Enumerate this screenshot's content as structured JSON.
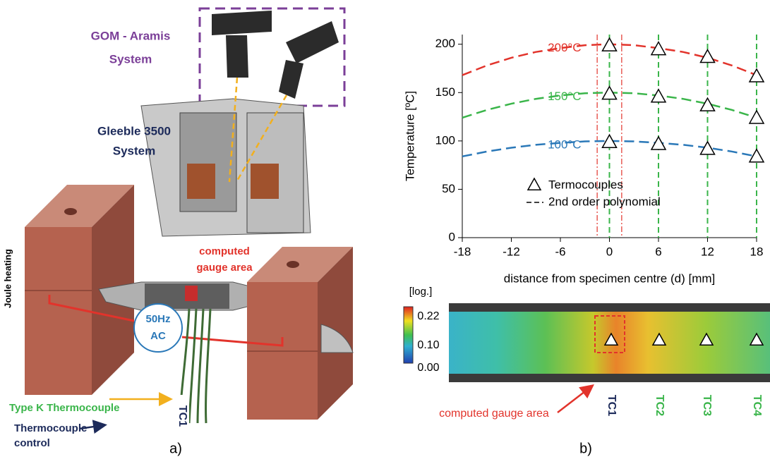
{
  "panel_a": {
    "gom": [
      "GOM - Aramis",
      "System"
    ],
    "gleeble": [
      "Gleeble 3500",
      "System"
    ],
    "gauge": [
      "computed",
      "gauge area"
    ],
    "joule": "Joule heating",
    "source": [
      "50Hz",
      "AC"
    ],
    "type_k": "Type K Thermocouple",
    "control": [
      "Thermocouple",
      "control"
    ],
    "tc1": "TC1",
    "caption": "a)"
  },
  "chart_data": {
    "type": "line",
    "x": [
      -18,
      -15,
      -12,
      -9,
      -6,
      -3,
      0,
      3,
      6,
      9,
      12,
      15,
      18
    ],
    "series": [
      {
        "name": "200°C",
        "color": "#e2332b",
        "values": [
          168,
          178,
          186,
          192,
          196,
          199,
          200,
          199,
          196,
          192,
          186,
          178,
          168
        ]
      },
      {
        "name": "150°C",
        "color": "#3ab54a",
        "values": [
          124,
          132,
          138.5,
          143.5,
          147,
          149.3,
          150,
          149.3,
          147,
          143.5,
          138.5,
          132,
          124
        ]
      },
      {
        "name": "100°C",
        "color": "#2a78b8",
        "values": [
          84,
          89,
          93,
          96,
          98,
          99.5,
          100,
          99.5,
          98,
          96,
          93,
          89,
          84
        ]
      }
    ],
    "points": {
      "name": "Termocouples",
      "x": [
        0,
        6,
        12,
        18,
        0,
        6,
        12,
        18,
        0,
        6,
        12,
        18
      ],
      "values": [
        199,
        195,
        187,
        167,
        149,
        146,
        137,
        124,
        99,
        97,
        92,
        84
      ]
    },
    "polynomial_label": "2nd order polynomial",
    "green_lines": [
      0,
      6,
      12,
      18
    ],
    "red_lines": [
      -1.5,
      1.5
    ],
    "xlabel": "distance from specimen centre (d) [mm]",
    "ylabel": "Temperature [ºC]",
    "xlim": [
      -18,
      18
    ],
    "xticks": [
      -18,
      -12,
      -6,
      0,
      6,
      12,
      18
    ],
    "ylim": [
      0,
      210
    ],
    "yticks": [
      0,
      50,
      100,
      150,
      200
    ]
  },
  "strain_map": {
    "unit": "[log.]",
    "colorbar_labels": [
      "0.22",
      "0.10",
      "0.00"
    ],
    "tcs": [
      "TC1",
      "TC2",
      "TC3",
      "TC4"
    ],
    "gauge": "computed gauge area",
    "caption": "b)"
  }
}
